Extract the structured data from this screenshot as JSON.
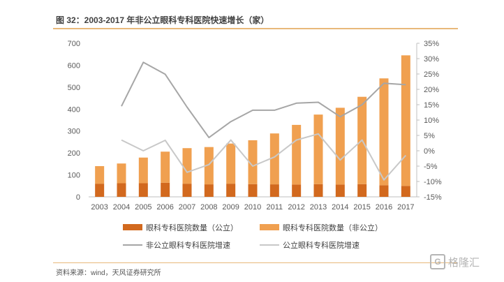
{
  "title": "图 32：2003-2017 年非公立眼科专科医院快速增长（家）",
  "source": "资料来源：wind，天风证券研究所",
  "watermark": "格隆汇",
  "colors": {
    "public_bar": "#d2691e",
    "nonpublic_bar": "#f0a050",
    "nonpublic_line": "#a6a6a6",
    "public_line": "#c8c8c8",
    "axis": "#bfbfbf",
    "rule": "#e8b87a"
  },
  "chart_data": {
    "type": "bar+line",
    "categories": [
      "2003",
      "2004",
      "2005",
      "2006",
      "2007",
      "2008",
      "2009",
      "2010",
      "2011",
      "2012",
      "2013",
      "2014",
      "2015",
      "2016",
      "2017"
    ],
    "left_axis": {
      "ylim": [
        0,
        700
      ],
      "ticks": [
        0,
        100,
        200,
        300,
        400,
        500,
        600,
        700
      ]
    },
    "right_axis": {
      "ylim": [
        -15,
        35
      ],
      "ticks": [
        -15,
        -10,
        -5,
        0,
        5,
        10,
        15,
        20,
        25,
        30,
        35
      ],
      "tick_labels": [
        "-15%",
        "-10%",
        "-5%",
        "0%",
        "5%",
        "10%",
        "15%",
        "20%",
        "25%",
        "30%",
        "35%"
      ]
    },
    "bar_series": [
      {
        "name": "眼科专科医院数量（公立）",
        "values": [
          60,
          62,
          62,
          64,
          60,
          57,
          60,
          58,
          57,
          56,
          58,
          56,
          58,
          53,
          50
        ]
      },
      {
        "name": "眼科专科医院数量（非公立）",
        "values": [
          80,
          90,
          117,
          142,
          162,
          170,
          183,
          200,
          232,
          272,
          317,
          350,
          398,
          487,
          595
        ]
      }
    ],
    "line_series": [
      {
        "name": "非公立眼科专科医院增速",
        "axis": "right",
        "values": [
          null,
          14.5,
          28.8,
          24.9,
          14.2,
          4.3,
          9.5,
          13.2,
          13.2,
          15.5,
          15.8,
          11.1,
          15.0,
          22.0,
          21.5
        ]
      },
      {
        "name": "公立眼科专科医院增速",
        "axis": "right",
        "values": [
          null,
          3.5,
          0.0,
          3.4,
          -7.0,
          -4.5,
          3.5,
          -5.0,
          -2.0,
          3.5,
          5.5,
          -3.0,
          3.5,
          -9.5,
          -1.5
        ]
      }
    ]
  }
}
